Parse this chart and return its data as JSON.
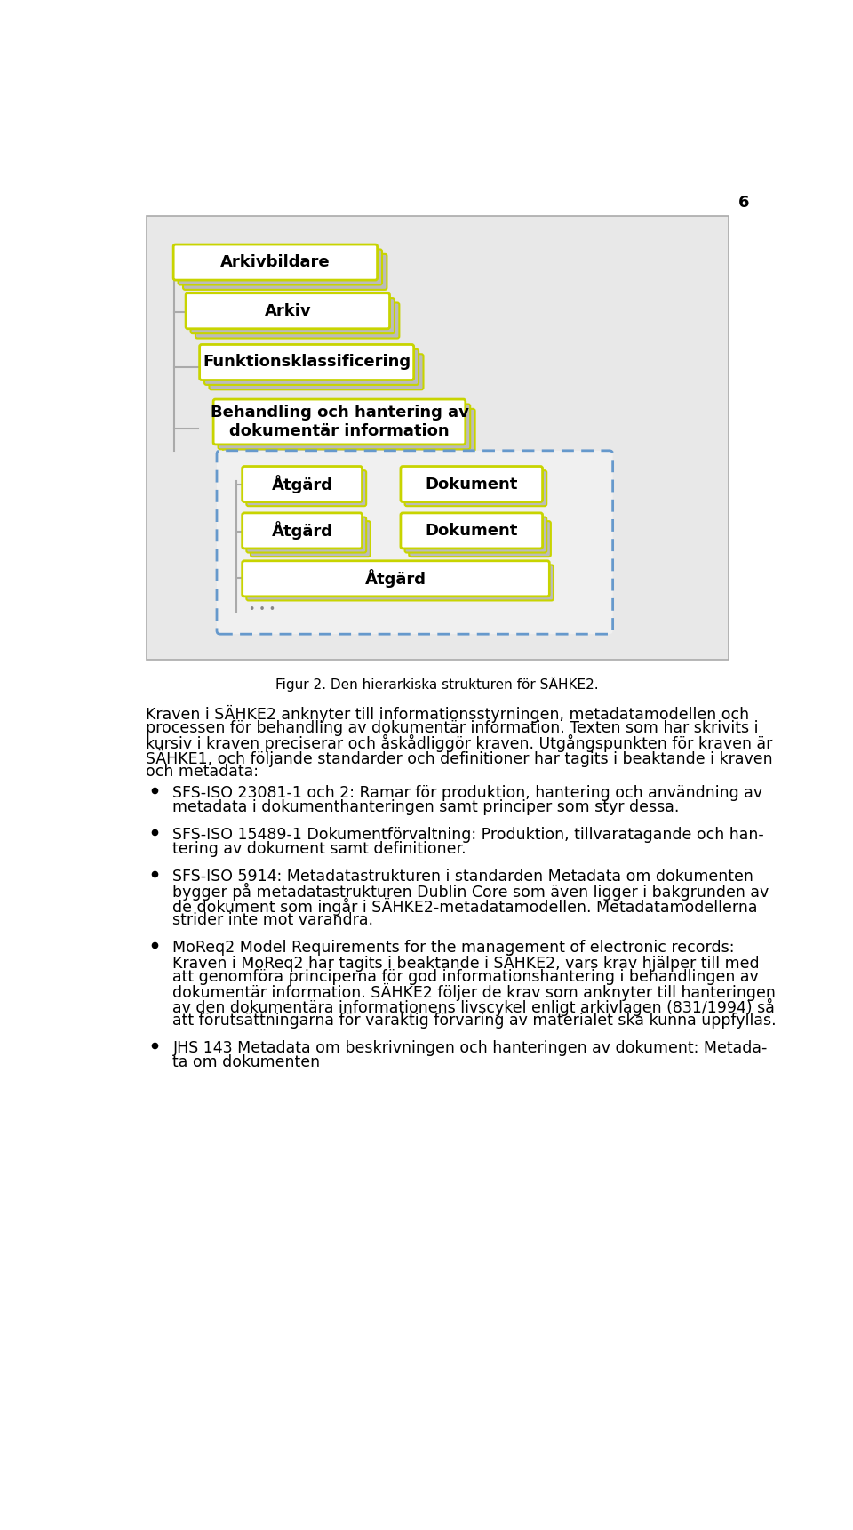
{
  "page_number": "6",
  "bg_color": "#ffffff",
  "diagram_bg": "#e8e8e8",
  "diagram_border": "#aaaaaa",
  "box_fill": "#ffffff",
  "box_border_yellow": "#c8d400",
  "box_shadow_color": "#bbbbbb",
  "dashed_border_color": "#6699cc",
  "line_color": "#aaaaaa",
  "caption": "Figur 2. Den hierarkiska strukturen för SÄHKE2.",
  "paragraph1_line1": "Kraven i SÄHKE2 anknyter till informationsstyrningen, metadatamodellen och",
  "paragraph1_line2": "processen för behandling av dokumentär information. Texten som har skrivits i",
  "paragraph1_line3": "kursiv i kraven preciserar och åskådliggör kraven. Utgångspunkten för kraven är",
  "paragraph1_line4": "SÄHKE1, och följande standarder och definitioner har tagits i beaktande i kraven",
  "paragraph1_line5": "och metadata:",
  "bullet1_line1": "SFS-ISO 23081-1 och 2: Ramar för produktion, hantering och användning av",
  "bullet1_line2": "metadata i dokumenthanteringen samt principer som styr dessa.",
  "bullet2_line1": "SFS-ISO 15489-1 Dokumentförvaltning: Produktion, tillvaratagande och han-",
  "bullet2_line2": "tering av dokument samt definitioner.",
  "bullet3_line1": "SFS-ISO 5914: Metadatastrukturen i standarden Metadata om dokumenten",
  "bullet3_line2": "bygger på metadatastrukturen Dublin Core som även ligger i bakgrunden av",
  "bullet3_line3": "de dokument som ingår i SÄHKE2-metadatamodellen. Metadatamodellerna",
  "bullet3_line4": "strider inte mot varandra.",
  "bullet4_line1": "MoReq2 Model Requirements for the management of electronic records:",
  "bullet4_line2": "Kraven i MoReq2 har tagits i beaktande i SÄHKE2, vars krav hjälper till med",
  "bullet4_line3": "att genomföra principerna för god informationshantering i behandlingen av",
  "bullet4_line4": "dokumentär information. SÄHKE2 följer de krav som anknyter till hanteringen",
  "bullet4_line5": "av den dokumentära informationens livscykel enligt arkivlagen (831/1994) så",
  "bullet4_line6": "att förutsättningarna för varaktig förvaring av materialet ska kunna uppfyllas.",
  "bullet5_line1": "JHS 143 Metadata om beskrivningen och hanteringen av dokument: Metada-",
  "bullet5_line2": "ta om dokumenten"
}
